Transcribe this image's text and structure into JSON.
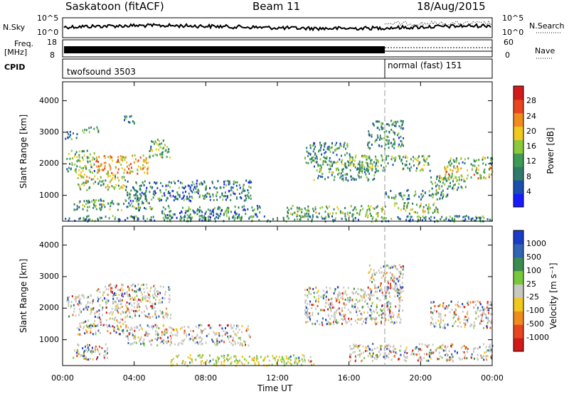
{
  "header": {
    "station": "Saskatoon (fitACF)",
    "beam": "Beam 11",
    "date": "18/Aug/2015"
  },
  "status_panel": {
    "nsky_label": "N.Sky",
    "nsky_ticks": [
      "10^5",
      "10^0"
    ],
    "nsearch_label": "N.Search",
    "nsearch_ticks": [
      "10^5",
      "10^0"
    ],
    "freq_label_1": "Freq.",
    "freq_label_2": "[MHz]",
    "freq_ticks": [
      "18",
      "8"
    ],
    "nave_label": "Nave",
    "nave_ticks": [
      "60",
      "0"
    ],
    "cpid_label": "CPID",
    "cpid_modes": [
      {
        "name": "twofsound 3503",
        "start_hour": 0,
        "end_hour": 18
      },
      {
        "name": "normal (fast) 151",
        "start_hour": 18,
        "end_hour": 24
      }
    ]
  },
  "time_axis": {
    "label": "Time UT",
    "ticks": [
      "00:00",
      "04:00",
      "08:00",
      "12:00",
      "16:00",
      "20:00",
      "00:00"
    ]
  },
  "chart_data": [
    {
      "type": "heatmap",
      "name": "power",
      "xlabel": "Time UT",
      "ylabel": "Slant Range [km]",
      "xlim": [
        0,
        24
      ],
      "ylim": [
        180,
        4600
      ],
      "yticks": [
        "1000",
        "2000",
        "3000",
        "4000"
      ],
      "colorbar": {
        "label": "Power [dB]",
        "ticks": [
          "4",
          "8",
          "12",
          "16",
          "20",
          "24",
          "28"
        ],
        "range": [
          0,
          30
        ],
        "colors": [
          "#1a1aff",
          "#1a4fb0",
          "#2f7a6a",
          "#3f9a55",
          "#8cc83c",
          "#f0c81e",
          "#f08c1e",
          "#e8461e",
          "#d21a1a"
        ]
      },
      "features": [
        {
          "t0": 0.1,
          "t1": 0.8,
          "r0": 2800,
          "r1": 3050,
          "level": 0.3
        },
        {
          "t0": 0.2,
          "t1": 1.8,
          "r0": 1750,
          "r1": 2450,
          "level": 0.4
        },
        {
          "t0": 1.8,
          "t1": 4.8,
          "r0": 1700,
          "r1": 2300,
          "level": 0.7
        },
        {
          "t0": 4.8,
          "t1": 6.0,
          "r0": 2200,
          "r1": 2800,
          "level": 0.4
        },
        {
          "t0": 1.0,
          "t1": 2.0,
          "r0": 3000,
          "r1": 3200,
          "level": 0.3
        },
        {
          "t0": 3.4,
          "t1": 4.0,
          "r0": 3300,
          "r1": 3550,
          "level": 0.3
        },
        {
          "t0": 0.8,
          "t1": 3.5,
          "r0": 1200,
          "r1": 1700,
          "level": 0.5
        },
        {
          "t0": 0.6,
          "t1": 5.0,
          "r0": 550,
          "r1": 900,
          "level": 0.35
        },
        {
          "t0": 3.5,
          "t1": 10.5,
          "r0": 850,
          "r1": 1500,
          "level": 0.25
        },
        {
          "t0": 5.5,
          "t1": 11.0,
          "r0": 300,
          "r1": 700,
          "level": 0.25
        },
        {
          "t0": 0.0,
          "t1": 24.0,
          "r0": 200,
          "r1": 380,
          "level": 0.3
        },
        {
          "t0": 12.5,
          "t1": 18.0,
          "r0": 350,
          "r1": 700,
          "level": 0.45
        },
        {
          "t0": 13.5,
          "t1": 16.0,
          "r0": 2000,
          "r1": 2700,
          "level": 0.3
        },
        {
          "t0": 14.0,
          "t1": 17.5,
          "r0": 1500,
          "r1": 2100,
          "level": 0.35
        },
        {
          "t0": 17.0,
          "t1": 19.0,
          "r0": 2500,
          "r1": 3400,
          "level": 0.3
        },
        {
          "t0": 16.0,
          "t1": 20.5,
          "r0": 1800,
          "r1": 2300,
          "level": 0.4
        },
        {
          "t0": 18.0,
          "t1": 21.5,
          "r0": 900,
          "r1": 1200,
          "level": 0.3
        },
        {
          "t0": 18.5,
          "t1": 21.0,
          "r0": 450,
          "r1": 800,
          "level": 0.45
        },
        {
          "t0": 21.0,
          "t1": 24.0,
          "r0": 1550,
          "r1": 1950,
          "level": 0.6
        },
        {
          "t0": 21.5,
          "t1": 24.0,
          "r0": 1950,
          "r1": 2250,
          "level": 0.4
        },
        {
          "t0": 20.5,
          "t1": 22.5,
          "r0": 1200,
          "r1": 1650,
          "level": 0.35
        }
      ]
    },
    {
      "type": "heatmap",
      "name": "velocity",
      "xlabel": "Time UT",
      "ylabel": "Slant Range [km]",
      "xlim": [
        0,
        24
      ],
      "ylim": [
        180,
        4600
      ],
      "yticks": [
        "1000",
        "2000",
        "3000",
        "4000"
      ],
      "colorbar": {
        "label": "Velocity [m s⁻¹]",
        "ticks": [
          "1000",
          "500",
          "100",
          "25",
          "-25",
          "-100",
          "-500",
          "-1000"
        ],
        "colors": [
          "#1a3cc8",
          "#3264b4",
          "#3c8c50",
          "#78c83c",
          "#c8c8c0",
          "#f0c81e",
          "#f08c1e",
          "#e8461e",
          "#d21a1a"
        ]
      },
      "features": [
        {
          "t0": 0.2,
          "t1": 1.8,
          "r0": 1750,
          "r1": 2450,
          "level": 0.5
        },
        {
          "t0": 1.8,
          "t1": 6.0,
          "r0": 1700,
          "r1": 2800,
          "level": 0.5
        },
        {
          "t0": 0.8,
          "t1": 3.5,
          "r0": 1200,
          "r1": 1700,
          "level": 0.3
        },
        {
          "t0": 0.5,
          "t1": 2.5,
          "r0": 400,
          "r1": 900,
          "level": 0.35
        },
        {
          "t0": 3.5,
          "t1": 10.5,
          "r0": 850,
          "r1": 1500,
          "level": 0.5
        },
        {
          "t0": 6.0,
          "t1": 14.0,
          "r0": 200,
          "r1": 550,
          "level": 0.65
        },
        {
          "t0": 13.5,
          "t1": 19.0,
          "r0": 1500,
          "r1": 2700,
          "level": 0.5
        },
        {
          "t0": 16.0,
          "t1": 24.0,
          "r0": 350,
          "r1": 900,
          "level": 0.5
        },
        {
          "t0": 20.5,
          "t1": 24.0,
          "r0": 1400,
          "r1": 2250,
          "level": 0.5
        },
        {
          "t0": 17.0,
          "t1": 19.0,
          "r0": 2500,
          "r1": 3400,
          "level": 0.45
        }
      ]
    }
  ]
}
